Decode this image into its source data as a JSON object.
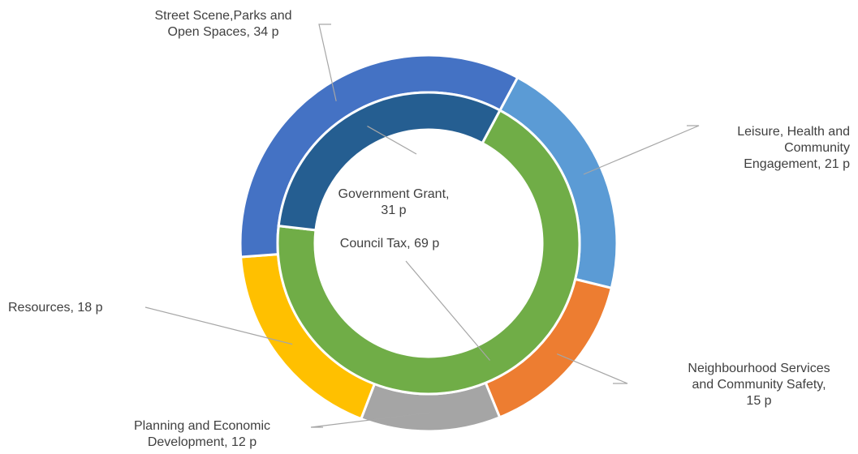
{
  "chart_data": {
    "type": "doughnut",
    "rings": [
      {
        "ring": "outer",
        "series": [
          {
            "name": "Leisure, Health and Community Engagement",
            "value": 21,
            "label": "Leisure, Health and Community Engagement,  21 p",
            "color": "#5b9bd5"
          },
          {
            "name": "Neighbourhood Services and Community Safety",
            "value": 15,
            "label": "Neighbourhood Services and Community Safety,  15 p",
            "color": "#ed7d31"
          },
          {
            "name": "Planning and Economic Development",
            "value": 12,
            "label": "Planning and Economic Development,  12 p",
            "color": "#a5a5a5"
          },
          {
            "name": "Resources",
            "value": 18,
            "label": "Resources,  18 p",
            "color": "#ffc000"
          },
          {
            "name": "Street Scene,Parks and Open Spaces",
            "value": 34,
            "label": "Street Scene,Parks and Open Spaces,  34 p",
            "color": "#4472c4"
          }
        ]
      },
      {
        "ring": "inner",
        "series": [
          {
            "name": "Council Tax",
            "value": 69,
            "label": "Council Tax,  69 p",
            "color": "#70ad47"
          },
          {
            "name": "Government Grant",
            "value": 31,
            "label": "Government Grant,  31 p",
            "color": "#255e91"
          }
        ]
      }
    ],
    "unit": "p",
    "legend": "none",
    "start_angle_deg": 28.2
  }
}
